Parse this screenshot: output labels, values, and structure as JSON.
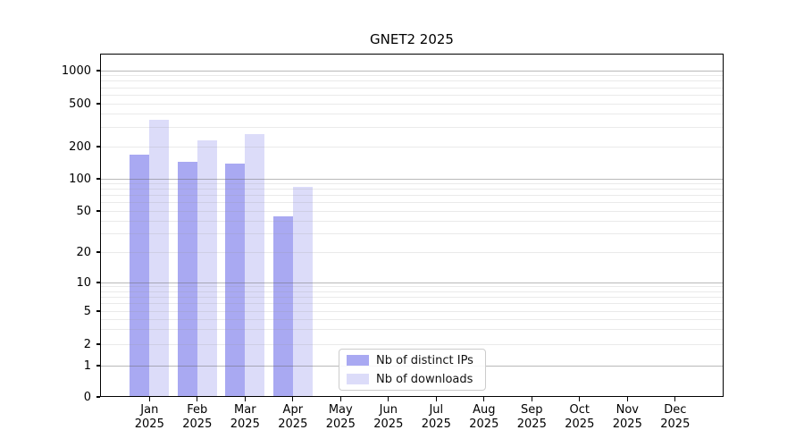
{
  "title": "GNET2 2025",
  "chart_data": {
    "type": "bar",
    "title": "GNET2 2025",
    "categories": [
      "Jan",
      "Feb",
      "Mar",
      "Apr",
      "May",
      "Jun",
      "Jul",
      "Aug",
      "Sep",
      "Oct",
      "Nov",
      "Dec"
    ],
    "year": "2025",
    "series": [
      {
        "name": "Nb of distinct IPs",
        "color": "#a9a9f2",
        "values": [
          168,
          145,
          140,
          44,
          null,
          null,
          null,
          null,
          null,
          null,
          null,
          null
        ]
      },
      {
        "name": "Nb of downloads",
        "color": "#dcdcf9",
        "values": [
          355,
          228,
          260,
          84,
          null,
          null,
          null,
          null,
          null,
          null,
          null,
          null
        ]
      }
    ],
    "yscale": "log-with-zero",
    "yticks": [
      0,
      1,
      2,
      5,
      10,
      20,
      50,
      100,
      200,
      500,
      1000
    ],
    "ylim": [
      0,
      1400
    ],
    "grid": "horizontal, major and minor, behind-visible-through-bars",
    "legend_position": "lower-center-inside"
  },
  "legend": {
    "items": [
      {
        "label": "Nb of distinct IPs",
        "color": "#a9a9f2"
      },
      {
        "label": "Nb of downloads",
        "color": "#dcdcf9"
      }
    ]
  }
}
